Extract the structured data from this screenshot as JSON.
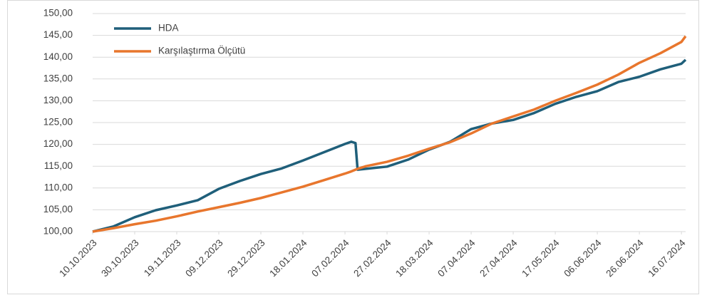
{
  "chart_data": {
    "type": "line",
    "x": [
      "10.10.2023",
      "20.10.2023",
      "30.10.2023",
      "09.11.2023",
      "19.11.2023",
      "29.11.2023",
      "09.12.2023",
      "19.12.2023",
      "29.12.2023",
      "08.01.2024",
      "18.01.2024",
      "28.01.2024",
      "07.02.2024",
      "10.02.2024",
      "12.02.2024",
      "13.02.2024",
      "17.02.2024",
      "27.02.2024",
      "08.03.2024",
      "18.03.2024",
      "28.03.2024",
      "07.04.2024",
      "17.04.2024",
      "27.04.2024",
      "07.05.2024",
      "17.05.2024",
      "27.05.2024",
      "06.06.2024",
      "16.06.2024",
      "26.06.2024",
      "06.07.2024",
      "16.07.2024",
      "18.07.2024"
    ],
    "series": [
      {
        "name": "HDA",
        "color": "#1f5f7a",
        "values": [
          100,
          101.2,
          103.3,
          104.9,
          106,
          107.2,
          109.8,
          111.6,
          113.2,
          114.5,
          116.3,
          118.2,
          120.1,
          120.6,
          120.3,
          114.2,
          114.4,
          114.9,
          116.5,
          118.8,
          120.6,
          123.5,
          124.8,
          125.6,
          127.2,
          129.3,
          130.9,
          132.2,
          134.3,
          135.5,
          137.2,
          138.5,
          139.4
        ]
      },
      {
        "name": "Karşılaştırma Ölçütü",
        "color": "#e8762d",
        "values": [
          100,
          100.8,
          101.7,
          102.5,
          103.5,
          104.6,
          105.6,
          106.6,
          107.7,
          109,
          110.3,
          111.8,
          113.3,
          113.8,
          114.2,
          114.4,
          115,
          116,
          117.4,
          119,
          120.5,
          122.5,
          124.8,
          126.4,
          128,
          130,
          131.8,
          133.7,
          136,
          138.7,
          140.9,
          143.5,
          144.8
        ]
      }
    ],
    "xlim": [
      "10.10.2023",
      "18.07.2024"
    ],
    "xticks": [
      "10.10.2023",
      "30.10.2023",
      "19.11.2023",
      "09.12.2023",
      "29.12.2023",
      "18.01.2024",
      "07.02.2024",
      "27.02.2024",
      "18.03.2024",
      "07.04.2024",
      "27.04.2024",
      "17.05.2024",
      "06.06.2024",
      "26.06.2024",
      "16.07.2024"
    ],
    "ylim": [
      100,
      150
    ],
    "yticks": [
      {
        "value": 100,
        "label": "100,00"
      },
      {
        "value": 105,
        "label": "105,00"
      },
      {
        "value": 110,
        "label": "110,00"
      },
      {
        "value": 115,
        "label": "115,00"
      },
      {
        "value": 120,
        "label": "120,00"
      },
      {
        "value": 125,
        "label": "125,00"
      },
      {
        "value": 130,
        "label": "130,00"
      },
      {
        "value": 135,
        "label": "135,00"
      },
      {
        "value": 140,
        "label": "140,00"
      },
      {
        "value": 145,
        "label": "145,00"
      },
      {
        "value": 150,
        "label": "150,00"
      }
    ],
    "grid": true
  }
}
